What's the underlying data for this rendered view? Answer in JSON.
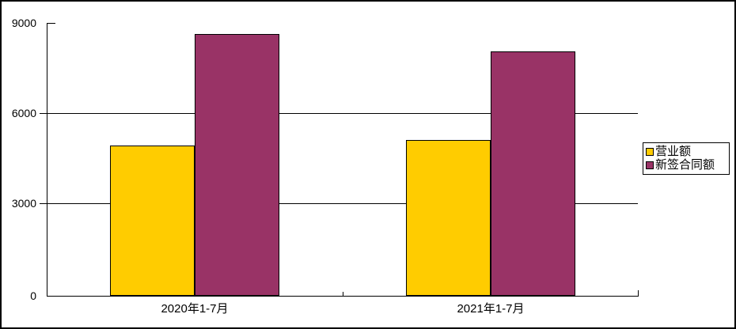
{
  "chart_data": {
    "type": "bar",
    "title": "",
    "xlabel": "",
    "ylabel": "",
    "categories": [
      "2020年1-7月",
      "2021年1-7月"
    ],
    "series": [
      {
        "name": "营业额",
        "color": "#FFCC00",
        "values": [
          4950,
          5140
        ]
      },
      {
        "name": "新签合同额",
        "color": "#993366",
        "values": [
          8640,
          8060
        ]
      }
    ],
    "ylim": [
      0,
      9000
    ],
    "yticks": [
      0,
      3000,
      6000,
      9000
    ],
    "ytick_labels": [
      "0",
      "3000",
      "6000",
      "9000"
    ],
    "grid": "horizontal-major",
    "legend_position": "middle-right",
    "bar_border_color": "#000000",
    "axis_color": "#000000",
    "plot_background": "#FFFFFF"
  }
}
